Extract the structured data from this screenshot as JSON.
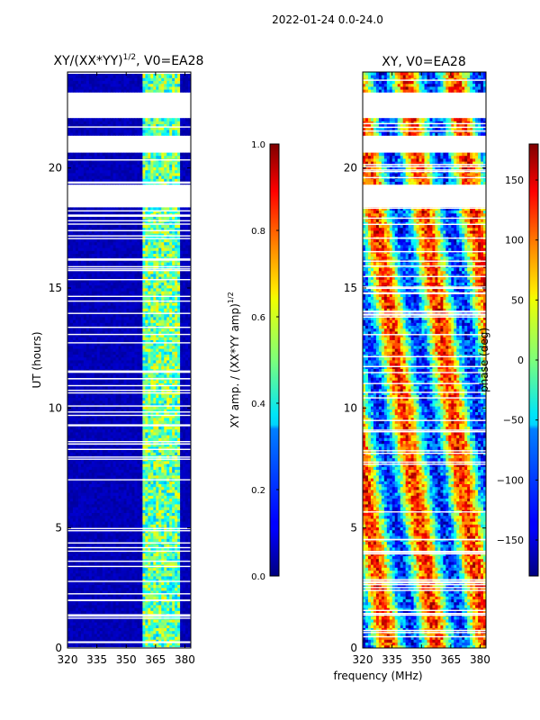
{
  "suptitle": "2022-01-24 0.0-24.0",
  "shared_xlabel": "frequency (MHz)",
  "chart_data": [
    {
      "type": "heatmap",
      "title": "XY/(XX*YY)",
      "title_sup": "1/2",
      "title_tail": ", V0=EA28",
      "ylabel": "UT (hours)",
      "xlim": [
        320,
        383
      ],
      "ylim": [
        0,
        24
      ],
      "xticks": [
        320,
        335,
        350,
        365,
        380
      ],
      "yticks": [
        0,
        5,
        10,
        15,
        20
      ],
      "colorbar": {
        "label": "XY amp. / (XX*YY amp)",
        "label_sup": "1/2",
        "range": [
          0.0,
          1.0
        ],
        "ticks": [
          "0.0",
          "0.2",
          "0.4",
          "0.6",
          "0.8",
          "1.0"
        ],
        "tick_values": [
          0.0,
          0.2,
          0.4,
          0.6,
          0.8,
          1.0
        ]
      },
      "gaps_hours": [
        [
          18.4,
          19.3
        ],
        [
          20.6,
          21.3
        ],
        [
          22.1,
          23.2
        ]
      ],
      "band_mhz": [
        358,
        378
      ]
    },
    {
      "type": "heatmap",
      "title": "XY, V0=EA28",
      "xlim": [
        320,
        383
      ],
      "ylim": [
        0,
        24
      ],
      "xticks": [
        320,
        335,
        350,
        365,
        380
      ],
      "yticks": [
        0,
        5,
        10,
        15,
        20
      ],
      "colorbar": {
        "label": "phase (deg)",
        "range": [
          -180,
          180
        ],
        "ticks": [
          "150",
          "100",
          "50",
          "0",
          "−50",
          "−100",
          "−150"
        ],
        "tick_values": [
          150,
          100,
          50,
          0,
          -50,
          -100,
          -150
        ]
      },
      "gaps_hours": [
        [
          18.4,
          19.3
        ],
        [
          20.6,
          21.3
        ],
        [
          22.1,
          23.2
        ]
      ]
    }
  ]
}
